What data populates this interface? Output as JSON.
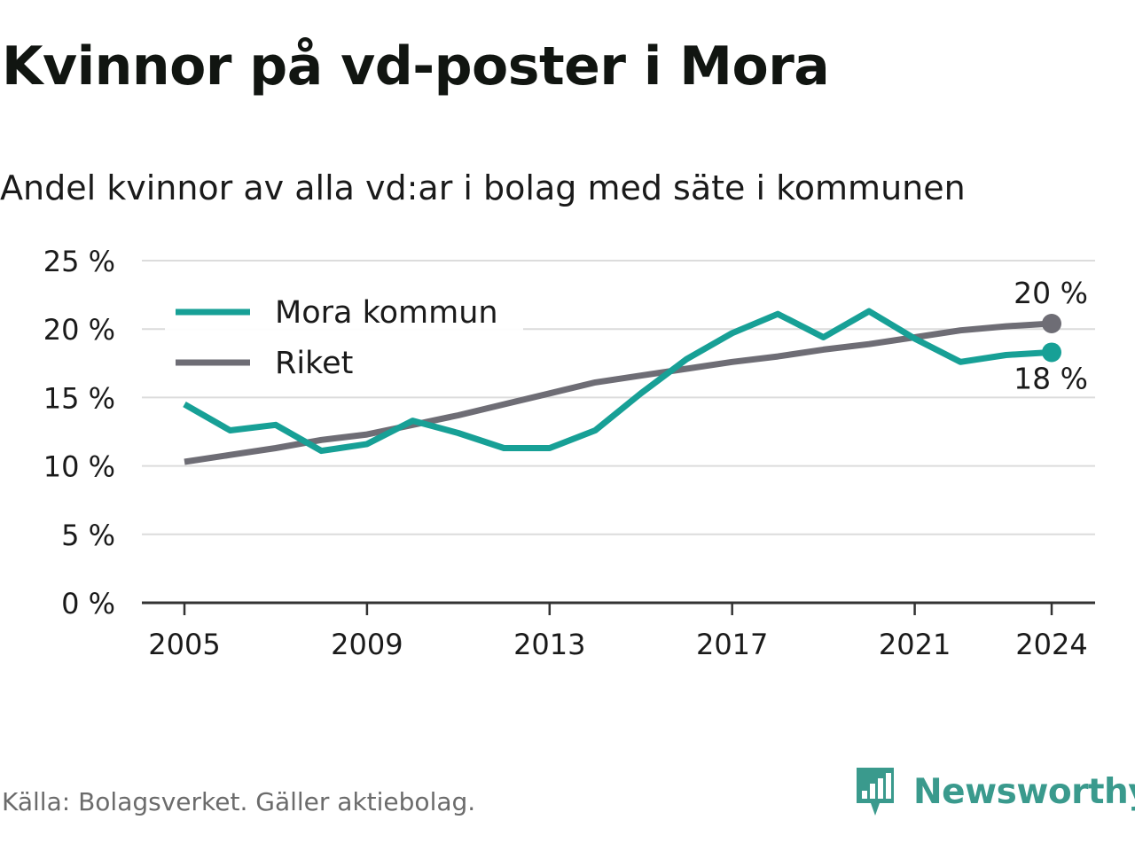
{
  "header": {
    "title": "Kvinnor på vd-poster i Mora",
    "subtitle": "Andel kvinnor av alla vd:ar i bolag med säte i kommunen"
  },
  "footer": {
    "source": "Källa: Bolagsverket. Gäller aktiebolag.",
    "brand": "Newsworthy",
    "brand_icon": "newsworthy-logo-icon"
  },
  "colors": {
    "mora": "#17a096",
    "riket": "#6e6d75",
    "grid": "#dcdcdc",
    "axis": "#333333",
    "brand": "#3a9a8d"
  },
  "chart_data": {
    "type": "line",
    "ylim": [
      0,
      25
    ],
    "yticks": [
      0,
      5,
      10,
      15,
      20,
      25
    ],
    "ytick_labels": [
      "0 %",
      "5 %",
      "10 %",
      "15 %",
      "20 %",
      "25 %"
    ],
    "xlim": [
      2005,
      2024
    ],
    "xticks": [
      2005,
      2009,
      2013,
      2017,
      2021,
      2024
    ],
    "xtick_labels": [
      "2005",
      "2009",
      "2013",
      "2017",
      "2021",
      "2024"
    ],
    "x": [
      2005,
      2006,
      2007,
      2008,
      2009,
      2010,
      2011,
      2012,
      2013,
      2014,
      2015,
      2016,
      2017,
      2018,
      2019,
      2020,
      2021,
      2022,
      2023,
      2024
    ],
    "grid": true,
    "legend_position": "top-left",
    "series": [
      {
        "name": "Mora kommun",
        "color_key": "mora",
        "values": [
          14.5,
          12.6,
          13.0,
          11.1,
          11.6,
          13.3,
          12.4,
          11.3,
          11.3,
          12.6,
          15.3,
          17.8,
          19.7,
          21.1,
          19.4,
          21.3,
          19.3,
          17.6,
          18.1,
          18.3
        ],
        "end_label": "18 %"
      },
      {
        "name": "Riket",
        "color_key": "riket",
        "values": [
          10.3,
          10.8,
          11.3,
          11.9,
          12.3,
          13.0,
          13.7,
          14.5,
          15.3,
          16.1,
          16.6,
          17.1,
          17.6,
          18.0,
          18.5,
          18.9,
          19.4,
          19.9,
          20.2,
          20.4
        ],
        "end_label": "20 %"
      }
    ]
  }
}
